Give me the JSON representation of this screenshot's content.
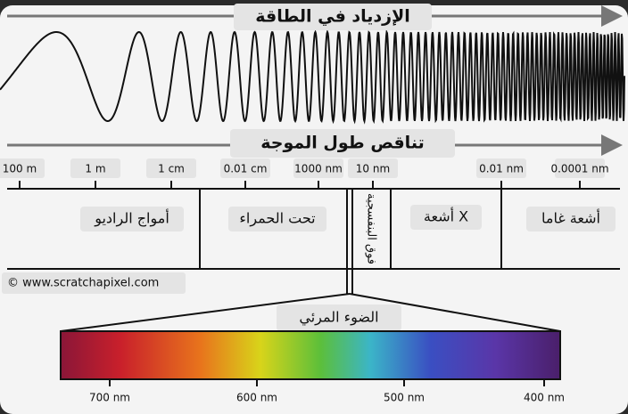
{
  "energy_arrow": {
    "label": "الإزدياد في الطاقة"
  },
  "wavelength_arrow": {
    "label": "تناقص طول الموجة"
  },
  "wavelength_scale": {
    "ticks": [
      "100 m",
      "1 m",
      "1 cm",
      "0.01 cm",
      "1000 nm",
      "10 nm",
      "0.01 nm",
      "0.0001 nm"
    ]
  },
  "regions": [
    "أمواج الراديو",
    "تحت الحمراء",
    "فوق البنفسجية",
    "أشعة X",
    "أشعة غاما"
  ],
  "credit": "© www.scratchapixel.com",
  "visible_light": {
    "label": "الضوء المرئي",
    "ticks": [
      "700 nm",
      "600 nm",
      "500 nm",
      "400 nm"
    ]
  }
}
